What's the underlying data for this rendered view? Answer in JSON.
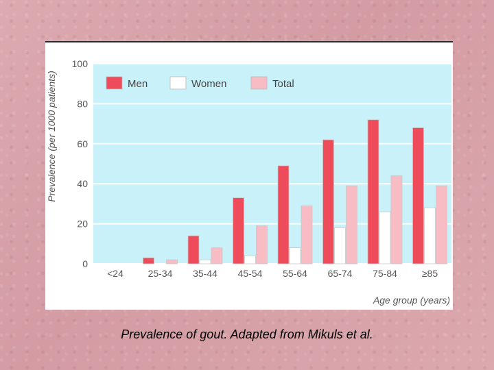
{
  "caption": "Prevalence of gout. Adapted from Mikuls et al.",
  "chart_data": {
    "type": "bar",
    "categories": [
      "<24",
      "25-34",
      "35-44",
      "45-54",
      "55-64",
      "65-74",
      "75-84",
      "≥85"
    ],
    "series": [
      {
        "name": "Men",
        "color": "#ee4c5a",
        "values": [
          0,
          3,
          14,
          33,
          49,
          62,
          72,
          68
        ]
      },
      {
        "name": "Women",
        "color": "#ffffff",
        "values": [
          0,
          0,
          2,
          4,
          8,
          18,
          26,
          28
        ]
      },
      {
        "name": "Total",
        "color": "#f8bcc4",
        "values": [
          0,
          2,
          8,
          19,
          29,
          39,
          44,
          39
        ]
      }
    ],
    "ylabel": "Prevalence (per 1000 patients)",
    "xlabel": "Age group (years)",
    "ylim": [
      0,
      100
    ],
    "yticks": [
      0,
      20,
      40,
      60,
      80,
      100
    ],
    "grid": true,
    "legend": "top-left",
    "plot_background": "#c8f1fa"
  }
}
